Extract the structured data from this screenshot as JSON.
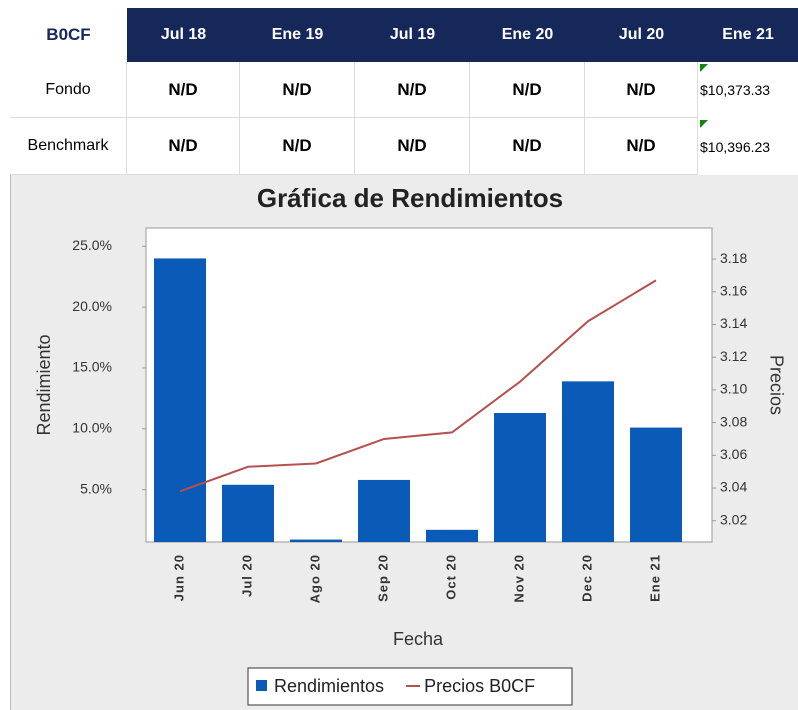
{
  "table": {
    "header": [
      "B0CF",
      "Jul 18",
      "Ene 19",
      "Jul 19",
      "Ene 20",
      "Jul 20",
      "Ene 21"
    ],
    "rows": [
      [
        "Fondo",
        "N/D",
        "N/D",
        "N/D",
        "N/D",
        "N/D",
        "$10,373.33"
      ],
      [
        "Benchmark",
        "N/D",
        "N/D",
        "N/D",
        "N/D",
        "N/D",
        "$10,396.23"
      ]
    ]
  },
  "chart_data": {
    "type": "bar_line",
    "title": "Gráfica de Rendimientos",
    "x_label": "Fecha",
    "y_label": "Rendimiento",
    "y2_label": "Precios",
    "categories": [
      "Jun 20",
      "Jul 20",
      "Ago 20",
      "Sep 20",
      "Oct 20",
      "Nov 20",
      "Dec 20",
      "Ene 21"
    ],
    "series": [
      {
        "name": "Rendimientos",
        "type": "bar",
        "color": "#0a5bb8",
        "values": [
          24.0,
          5.4,
          0.9,
          5.8,
          1.7,
          11.3,
          13.9,
          10.1
        ]
      },
      {
        "name": "Precios B0CF",
        "type": "line",
        "axis": "y2",
        "color": "#b5504f",
        "values": [
          3.038,
          3.053,
          3.055,
          3.07,
          3.074,
          3.105,
          3.142,
          3.167
        ]
      }
    ],
    "ylim": [
      0.7,
      26.5
    ],
    "yticks": [
      {
        "value": 5,
        "label": "5.0%"
      },
      {
        "value": 10,
        "label": "10.0%"
      },
      {
        "value": 15,
        "label": "15.0%"
      },
      {
        "value": 20,
        "label": "20.0%"
      },
      {
        "value": 25,
        "label": "25.0%"
      }
    ],
    "y2lim": [
      3.007,
      3.199
    ],
    "y2ticks": [
      3.02,
      3.04,
      3.06,
      3.08,
      {
        "value": 3.1,
        "label": "3.10"
      },
      3.12,
      3.14,
      3.16,
      3.18
    ],
    "grid": false,
    "legend": "bottom"
  }
}
